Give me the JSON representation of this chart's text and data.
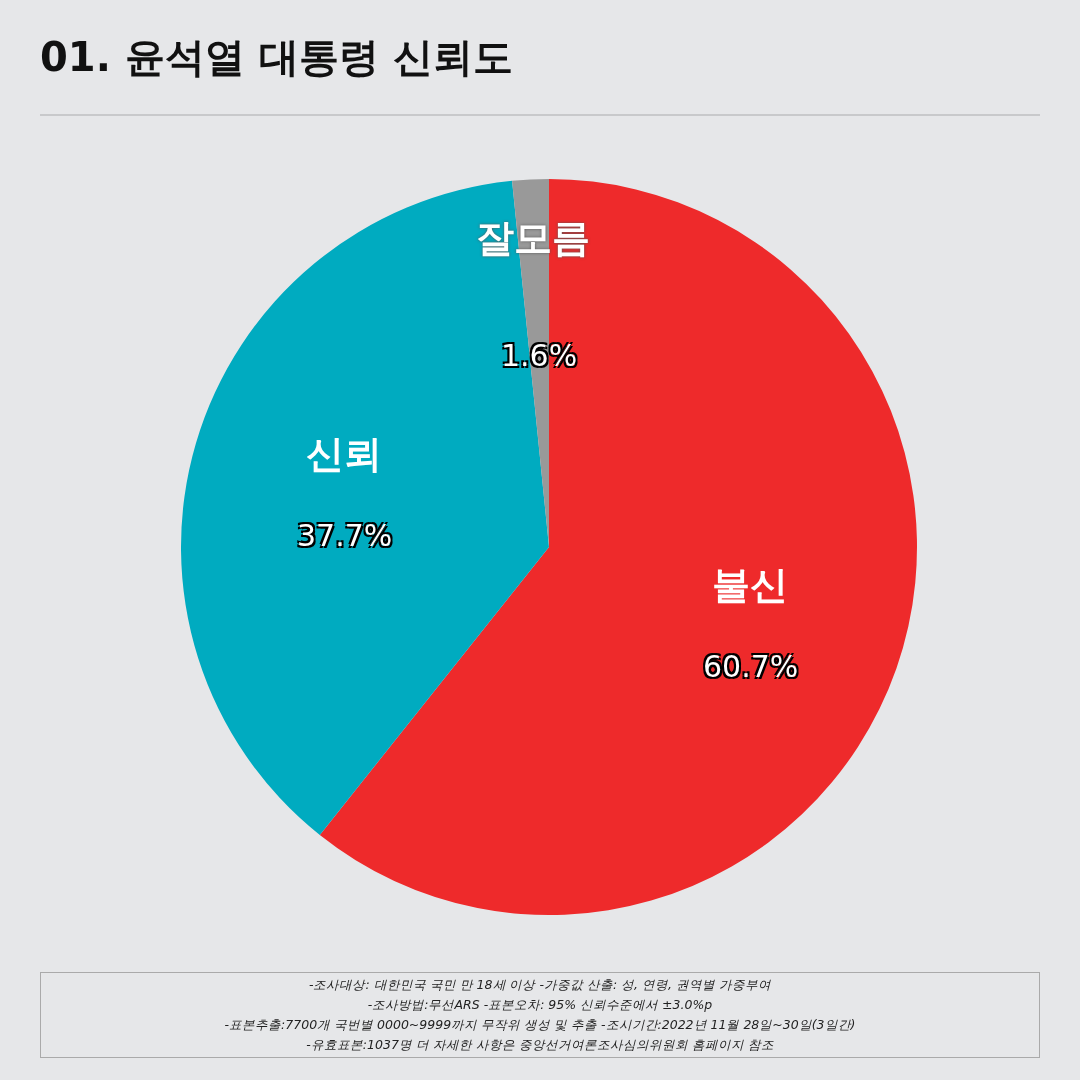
{
  "chart_data": {
    "type": "pie",
    "title": "01. 윤석열 대통령 신뢰도",
    "categories": [
      "불신",
      "신뢰",
      "잘모름"
    ],
    "values": [
      60.7,
      37.7,
      1.6
    ],
    "colors": [
      "#ee2a2b",
      "#00abc0",
      "#999999"
    ],
    "value_labels": [
      "60.7%",
      "37.7%",
      "1.6%"
    ],
    "legend": false,
    "annotations": [
      "-조사대상: 대한민국 국민 만 18세 이상  -가중값 산출: 성, 연령, 권역별 가중부여",
      "-조사방법:무선ARS -표본오차: 95% 신뢰수준에서 ±3.0%p",
      "-표본추출:7700개 국번별 0000~9999까지 무작위 생성 및 추출 -조시기간:2022년 11월 28일~30일(3일간)",
      "-유효표본:1037명 더 자세한 사항은 중앙선거여론조사심의위원회 홈페이지 참조"
    ]
  }
}
